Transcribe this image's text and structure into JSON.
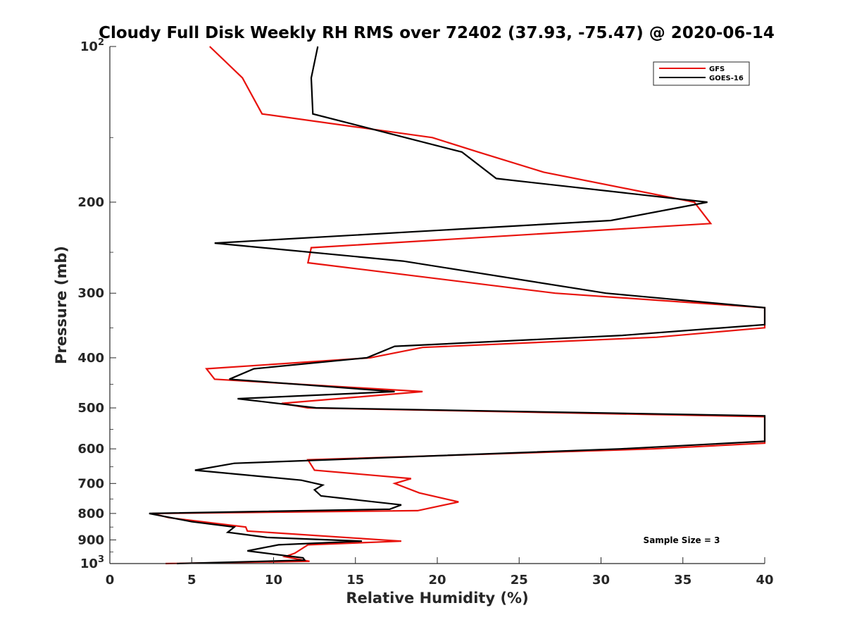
{
  "chart_data": {
    "type": "line",
    "title": "Cloudy Full Disk Weekly RH RMS over 72402 (37.93, -75.47) @ 2020-06-14",
    "xlabel": "Relative Humidity (%)",
    "ylabel": "Pressure (mb)",
    "xlim": [
      0,
      40
    ],
    "ylim": [
      100,
      1000
    ],
    "y_scale": "log",
    "y_reversed": true,
    "grid": false,
    "legend_position": "top-right",
    "x_ticks": [
      "0",
      "5",
      "10",
      "15",
      "20",
      "25",
      "30",
      "35",
      "40"
    ],
    "y_ticks": [
      {
        "value": 100,
        "base": "10",
        "exp": "2"
      },
      {
        "value": 200,
        "label": "200"
      },
      {
        "value": 300,
        "label": "300"
      },
      {
        "value": 400,
        "label": "400"
      },
      {
        "value": 500,
        "label": "500"
      },
      {
        "value": 600,
        "label": "600"
      },
      {
        "value": 700,
        "label": "700"
      },
      {
        "value": 800,
        "label": "800"
      },
      {
        "value": 900,
        "label": "900"
      },
      {
        "value": 1000,
        "base": "10",
        "exp": "3"
      }
    ],
    "series": [
      {
        "name": "GFS",
        "color": "#e8120c",
        "points": [
          [
            6.1,
            100
          ],
          [
            8.1,
            115
          ],
          [
            9.3,
            135
          ],
          [
            19.7,
            150
          ],
          [
            22.5,
            160
          ],
          [
            26.5,
            175
          ],
          [
            35.7,
            200
          ],
          [
            36.7,
            220
          ],
          [
            12.3,
            245
          ],
          [
            12.1,
            262
          ],
          [
            27.2,
            300
          ],
          [
            40,
            320
          ],
          [
            40,
            350
          ],
          [
            33.4,
            365
          ],
          [
            19.1,
            382
          ],
          [
            15.9,
            400
          ],
          [
            5.9,
            420
          ],
          [
            6.4,
            440
          ],
          [
            19.1,
            465
          ],
          [
            10.5,
            490
          ],
          [
            12.1,
            500
          ],
          [
            40,
            520
          ],
          [
            40,
            585
          ],
          [
            33.2,
            600
          ],
          [
            12.1,
            630
          ],
          [
            12.5,
            660
          ],
          [
            18.4,
            685
          ],
          [
            17.4,
            700
          ],
          [
            18.9,
            730
          ],
          [
            21.3,
            760
          ],
          [
            18.8,
            790
          ],
          [
            2.6,
            800
          ],
          [
            3.6,
            815
          ],
          [
            8.3,
            850
          ],
          [
            8.4,
            865
          ],
          [
            17.8,
            905
          ],
          [
            12.1,
            920
          ],
          [
            11.3,
            955
          ],
          [
            10.7,
            970
          ],
          [
            12.2,
            990
          ],
          [
            3.4,
            1000
          ]
        ]
      },
      {
        "name": "GOES-16",
        "color": "#000000",
        "points": [
          [
            12.7,
            100
          ],
          [
            12.3,
            115
          ],
          [
            12.4,
            135
          ],
          [
            21.5,
            160
          ],
          [
            23.6,
            180
          ],
          [
            36.5,
            200
          ],
          [
            30.6,
            217
          ],
          [
            6.4,
            240
          ],
          [
            17.9,
            260
          ],
          [
            30.3,
            300
          ],
          [
            40,
            320
          ],
          [
            40,
            345
          ],
          [
            31.3,
            362
          ],
          [
            17.4,
            380
          ],
          [
            15.7,
            400
          ],
          [
            8.8,
            420
          ],
          [
            7.3,
            440
          ],
          [
            17.4,
            465
          ],
          [
            7.8,
            480
          ],
          [
            12.6,
            500
          ],
          [
            40,
            518
          ],
          [
            40,
            580
          ],
          [
            31.2,
            600
          ],
          [
            7.6,
            640
          ],
          [
            5.2,
            660
          ],
          [
            11.7,
            690
          ],
          [
            13.0,
            705
          ],
          [
            12.5,
            720
          ],
          [
            12.9,
            740
          ],
          [
            17.8,
            770
          ],
          [
            17.1,
            785
          ],
          [
            2.4,
            800
          ],
          [
            5.0,
            830
          ],
          [
            7.6,
            850
          ],
          [
            7.2,
            870
          ],
          [
            9.6,
            890
          ],
          [
            15.4,
            905
          ],
          [
            10.3,
            920
          ],
          [
            8.4,
            945
          ],
          [
            11.8,
            975
          ],
          [
            11.9,
            985
          ],
          [
            4.1,
            1000
          ]
        ]
      }
    ],
    "annotation": "Sample Size = 3"
  }
}
